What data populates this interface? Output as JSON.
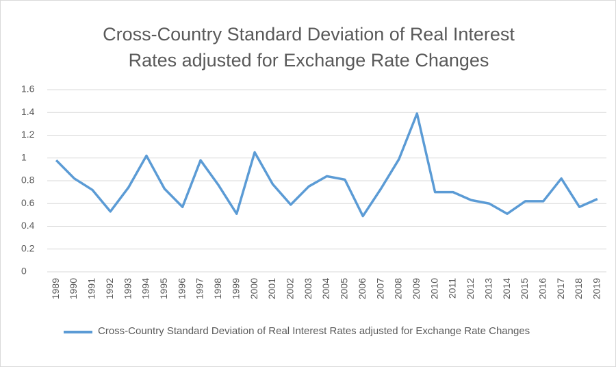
{
  "chart_data": {
    "type": "line",
    "title": "Cross-Country Standard Deviation of Real Interest Rates adjusted for Exchange Rate Changes",
    "categories": [
      "1989",
      "1990",
      "1991",
      "1992",
      "1993",
      "1994",
      "1995",
      "1996",
      "1997",
      "1998",
      "1999",
      "2000",
      "2001",
      "2002",
      "2003",
      "2004",
      "2005",
      "2006",
      "2007",
      "2008",
      "2009",
      "2010",
      "2011",
      "2012",
      "2013",
      "2014",
      "2015",
      "2016",
      "2017",
      "2018",
      "2019"
    ],
    "series": [
      {
        "name": "Cross-Country Standard Deviation of Real Interest Rates adjusted for Exchange Rate Changes",
        "color": "#5b9bd5",
        "values": [
          0.98,
          0.82,
          0.72,
          0.53,
          0.74,
          1.02,
          0.73,
          0.57,
          0.98,
          0.76,
          0.51,
          1.05,
          0.77,
          0.59,
          0.75,
          0.84,
          0.81,
          0.49,
          0.73,
          0.99,
          1.39,
          0.7,
          0.7,
          0.63,
          0.6,
          0.51,
          0.62,
          0.62,
          0.82,
          0.57,
          0.64
        ]
      }
    ],
    "ylim": [
      0,
      1.6
    ],
    "yticks": [
      0,
      0.2,
      0.4,
      0.6,
      0.8,
      1,
      1.2,
      1.4,
      1.6
    ],
    "grid": true,
    "legend": "bottom"
  }
}
